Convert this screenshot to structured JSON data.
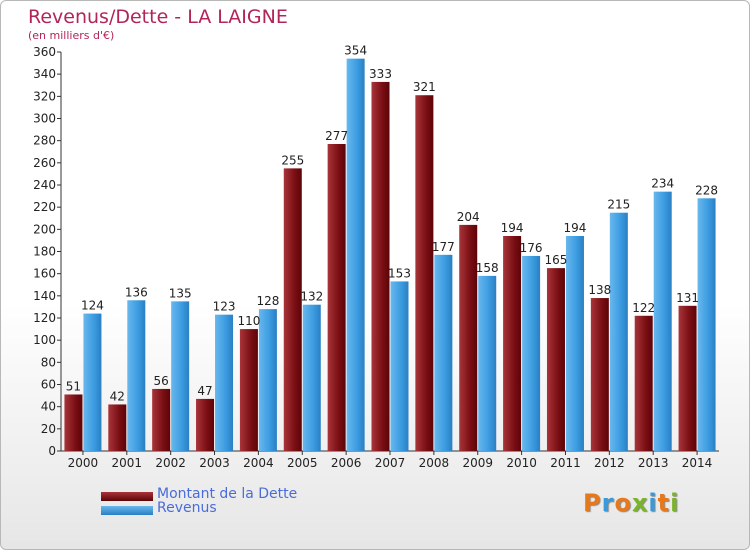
{
  "title": "Revenus/Dette - LA LAIGNE",
  "subtitle": "(en milliers d'€)",
  "logo": "Proxiti",
  "colors": {
    "dette": "#7a0f14",
    "revenus": "#3b9be0",
    "title": "#b2245a",
    "legend_text": "#4a6cd8"
  },
  "chart_data": {
    "type": "bar",
    "title": "Revenus/Dette - LA LAIGNE",
    "ylabel": "(en milliers d'€)",
    "xlabel": "",
    "ylim": [
      0,
      360
    ],
    "yticks": [
      0,
      20,
      40,
      60,
      80,
      100,
      120,
      140,
      160,
      180,
      200,
      220,
      240,
      260,
      280,
      300,
      320,
      340,
      360
    ],
    "grid": false,
    "legend": "bottom-left",
    "categories": [
      "2000",
      "2001",
      "2002",
      "2003",
      "2004",
      "2005",
      "2006",
      "2007",
      "2008",
      "2009",
      "2010",
      "2011",
      "2012",
      "2013",
      "2014"
    ],
    "series": [
      {
        "name": "Montant de la Dette",
        "values": [
          51,
          42,
          56,
          47,
          110,
          255,
          277,
          333,
          321,
          204,
          194,
          165,
          138,
          122,
          131
        ]
      },
      {
        "name": "Revenus",
        "values": [
          124,
          136,
          135,
          123,
          128,
          132,
          354,
          153,
          177,
          158,
          176,
          194,
          215,
          234,
          228
        ]
      }
    ]
  }
}
